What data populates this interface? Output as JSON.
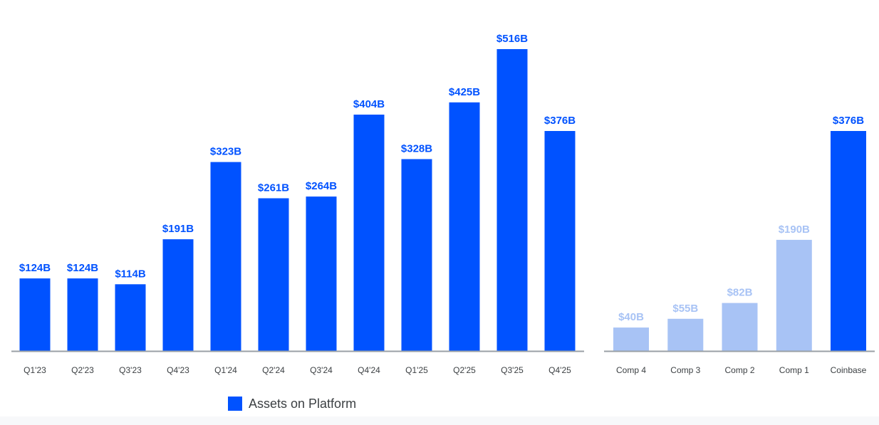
{
  "colors": {
    "primary": "#0052ff",
    "secondary": "#a8c3f5",
    "axis": "#9aa0a6"
  },
  "legend": {
    "label": "Assets on Platform"
  },
  "chart_data": [
    {
      "type": "bar",
      "categories": [
        "Q1'23",
        "Q2'23",
        "Q3'23",
        "Q4'23",
        "Q1'24",
        "Q2'24",
        "Q3'24",
        "Q4'24",
        "Q1'25",
        "Q2'25",
        "Q3'25",
        "Q4'25"
      ],
      "values": [
        124,
        124,
        114,
        191,
        323,
        261,
        264,
        404,
        328,
        425,
        516,
        376
      ],
      "value_labels": [
        "$124B",
        "$124B",
        "$114B",
        "$191B",
        "$323B",
        "$261B",
        "$264B",
        "$404B",
        "$328B",
        "$425B",
        "$516B",
        "$376B"
      ],
      "bar_colors": [
        "primary",
        "primary",
        "primary",
        "primary",
        "primary",
        "primary",
        "primary",
        "primary",
        "primary",
        "primary",
        "primary",
        "primary"
      ],
      "series": [
        {
          "name": "Assets on Platform",
          "values": [
            124,
            124,
            114,
            191,
            323,
            261,
            264,
            404,
            328,
            425,
            516,
            376
          ]
        }
      ],
      "ylim": [
        0,
        516
      ],
      "grid": false,
      "legend_position": "bottom"
    },
    {
      "type": "bar",
      "categories": [
        "Comp 4",
        "Comp 3",
        "Comp 2",
        "Comp 1",
        "Coinbase"
      ],
      "values": [
        40,
        55,
        82,
        190,
        376
      ],
      "value_labels": [
        "$40B",
        "$55B",
        "$82B",
        "$190B",
        "$376B"
      ],
      "bar_colors": [
        "secondary",
        "secondary",
        "secondary",
        "secondary",
        "primary"
      ],
      "ylim": [
        0,
        516
      ],
      "grid": false
    }
  ]
}
